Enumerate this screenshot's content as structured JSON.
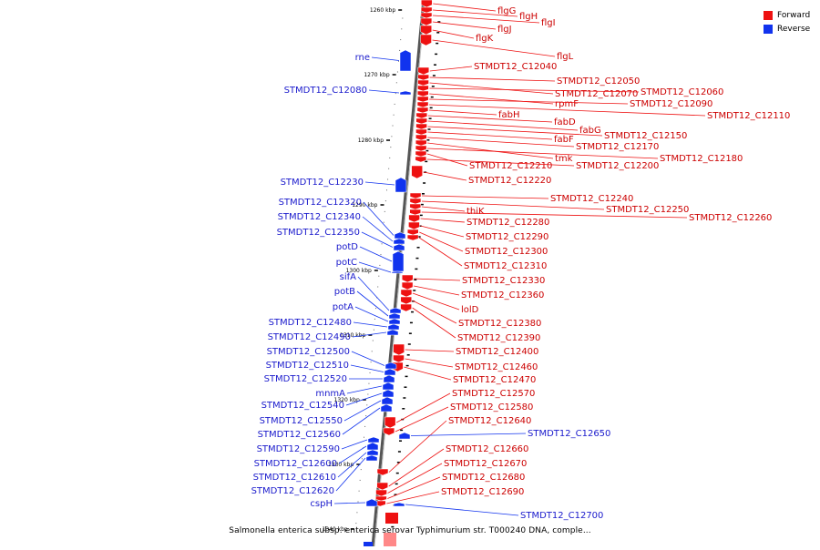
{
  "legend": {
    "forward_label": "Forward",
    "reverse_label": "Reverse",
    "forward_color": "#ee1111",
    "reverse_color": "#1133ee"
  },
  "caption": "Salmonella enterica subsp. enterica serovar Typhimurium str. T000240 DNA, comple...",
  "scale_labels": [
    "1260 kbp",
    "1270 kbp",
    "1280 kbp",
    "1290 kbp",
    "1300 kbp",
    "1310 kbp",
    "1320 kbp",
    "1330 kbp",
    "1340 kbp"
  ],
  "forward_labels": [
    "flgG",
    "flgH",
    "flgI",
    "flgJ",
    "flgK",
    "flgL",
    "STMDT12_C12040",
    "STMDT12_C12050",
    "STMDT12_C12070",
    "STMDT12_C12060",
    "rpmF",
    "STMDT12_C12090",
    "STMDT12_C12110",
    "fabH",
    "fabD",
    "fabG",
    "STMDT12_C12150",
    "fabF",
    "STMDT12_C12170",
    "tmk",
    "STMDT12_C12180",
    "STMDT12_C12210",
    "STMDT12_C12200",
    "STMDT12_C12220",
    "STMDT12_C12240",
    "STMDT12_C12250",
    "thiK",
    "STMDT12_C12260",
    "STMDT12_C12280",
    "STMDT12_C12290",
    "STMDT12_C12300",
    "STMDT12_C12310",
    "STMDT12_C12330",
    "STMDT12_C12360",
    "lolD",
    "STMDT12_C12380",
    "STMDT12_C12390",
    "STMDT12_C12400",
    "STMDT12_C12460",
    "STMDT12_C12470",
    "STMDT12_C12570",
    "STMDT12_C12580",
    "STMDT12_C12640",
    "STMDT12_C12660",
    "STMDT12_C12670",
    "STMDT12_C12680",
    "STMDT12_C12690"
  ],
  "reverse_labels": [
    "rne",
    "STMDT12_C12080",
    "STMDT12_C12230",
    "STMDT12_C12320",
    "STMDT12_C12340",
    "STMDT12_C12350",
    "potD",
    "potC",
    "sifA",
    "potB",
    "potA",
    "STMDT12_C12480",
    "STMDT12_C12490",
    "STMDT12_C12500",
    "STMDT12_C12510",
    "STMDT12_C12520",
    "mnmA",
    "STMDT12_C12540",
    "STMDT12_C12550",
    "STMDT12_C12560",
    "STMDT12_C12590",
    "STMDT12_C12600",
    "STMDT12_C12610",
    "STMDT12_C12620",
    "cspH",
    "STMDT12_C12650",
    "STMDT12_C12700"
  ]
}
